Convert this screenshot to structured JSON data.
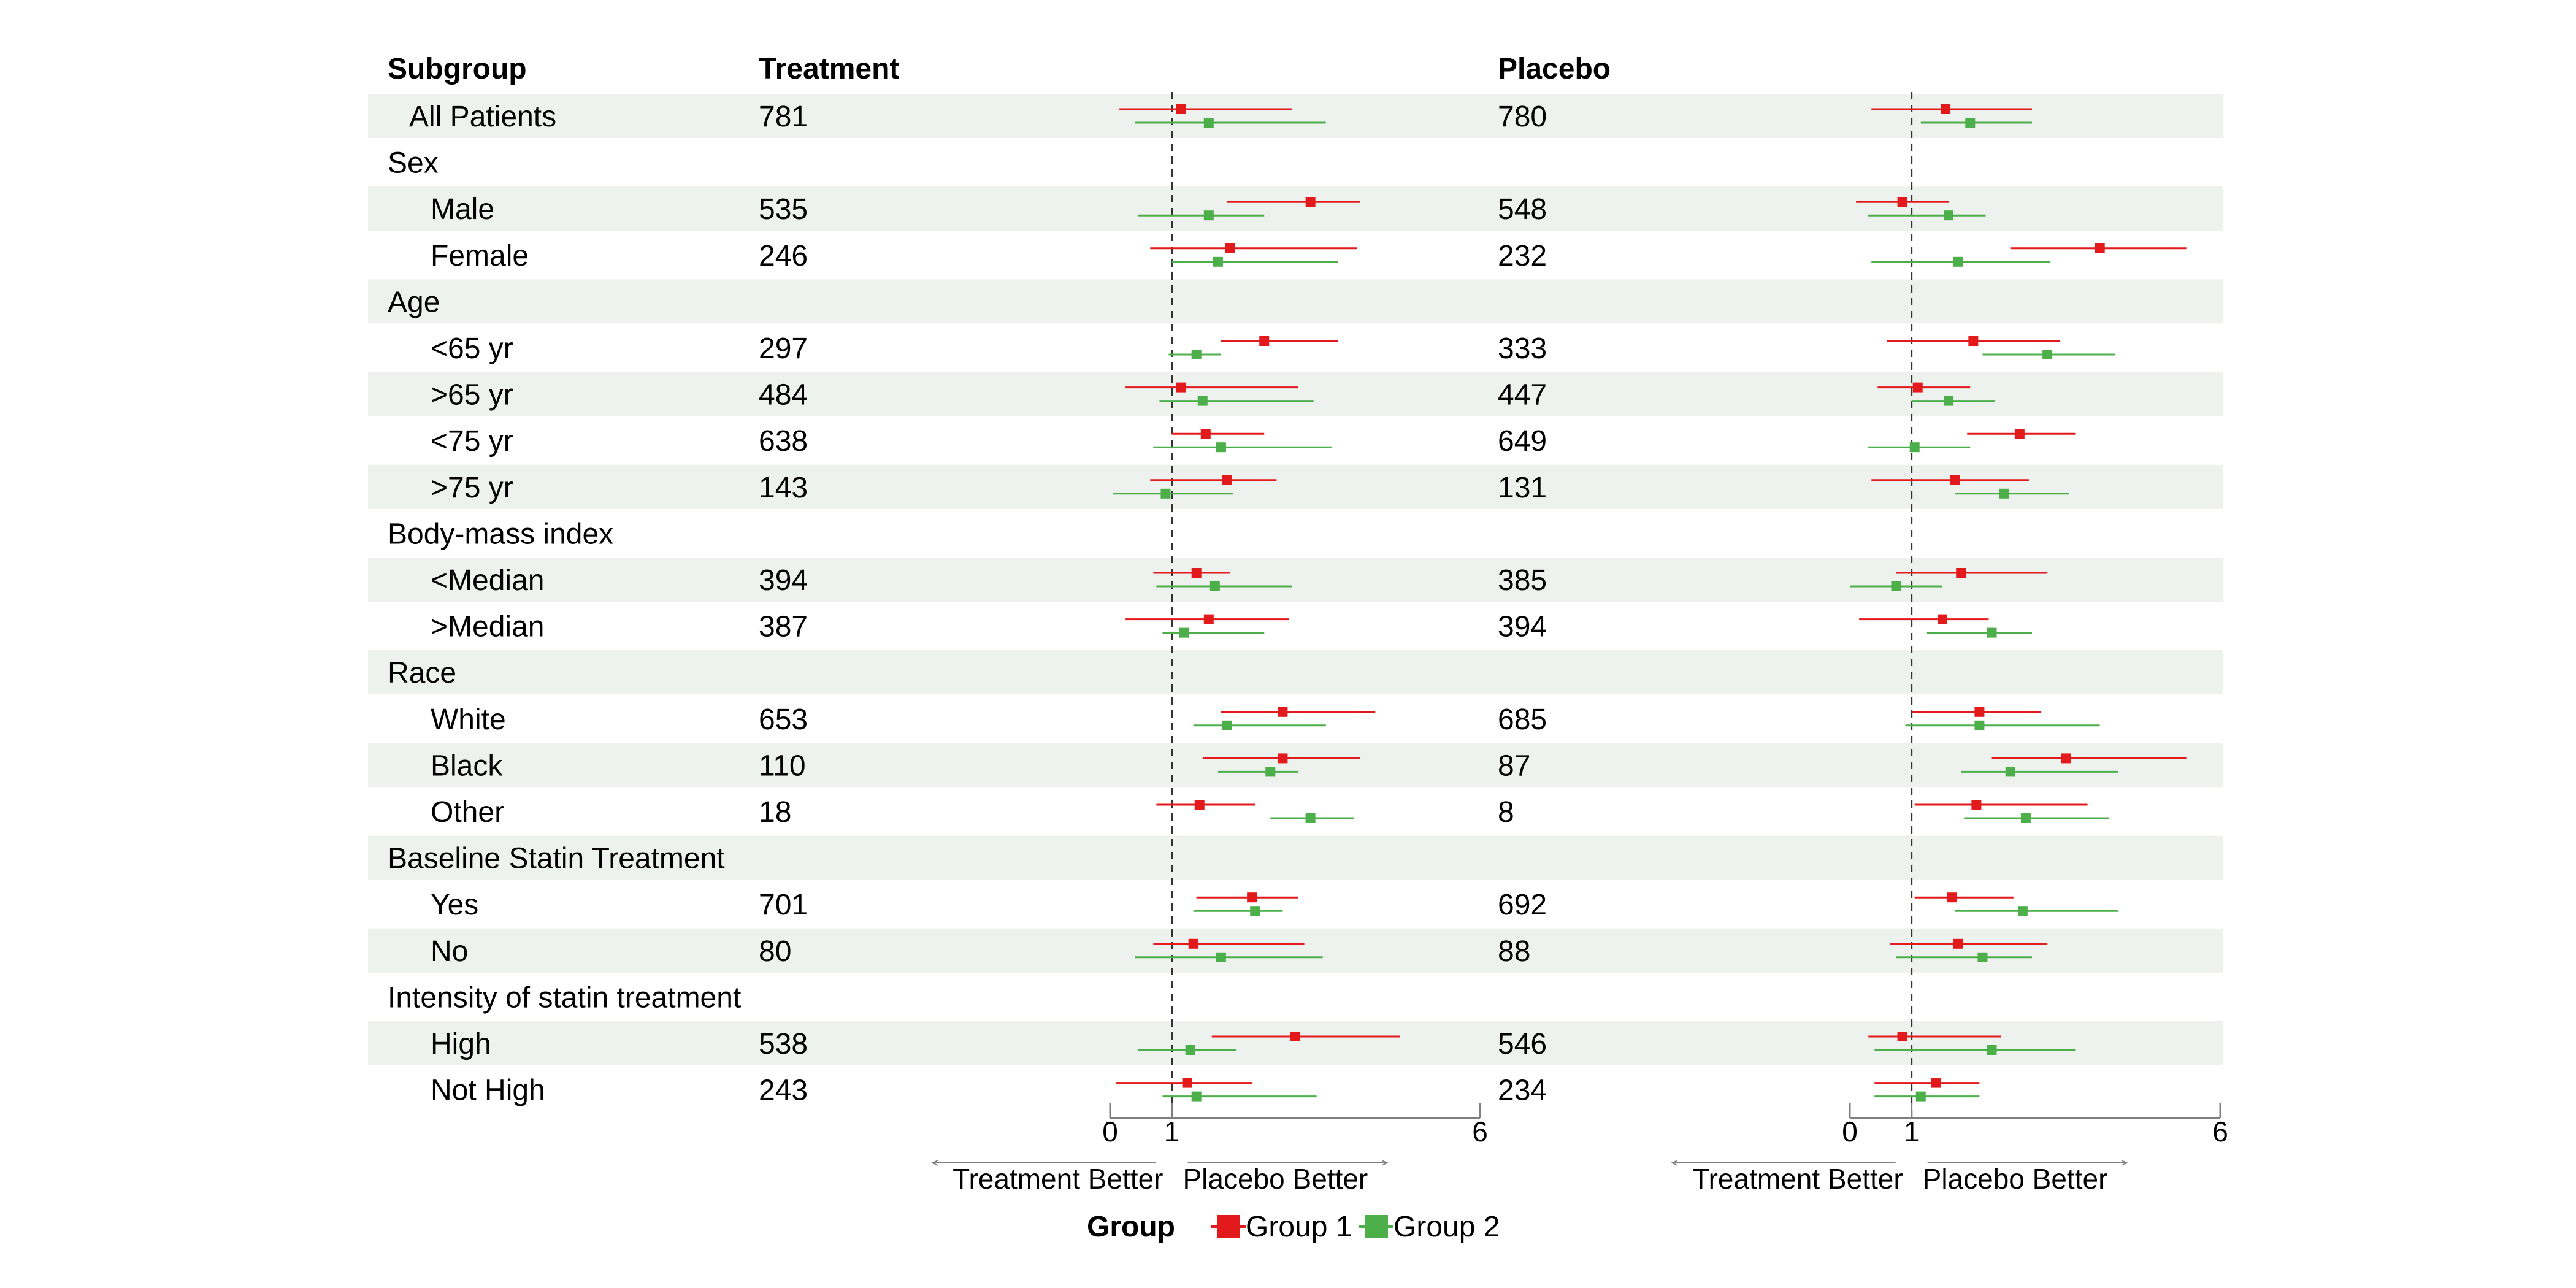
{
  "colors": {
    "group1": "#E31A1C",
    "group2": "#4DAF4A",
    "stripe": "#EEF2EF",
    "axis": "#7F7F7F",
    "refline": "#333333"
  },
  "headers": {
    "subgroup": "Subgroup",
    "treatment": "Treatment",
    "placebo": "Placebo"
  },
  "legend": {
    "title": "Group",
    "items": [
      "Group 1",
      "Group 2"
    ]
  },
  "chart_data": [
    {
      "type": "forest",
      "panel": "Treatment",
      "xlim": [
        0,
        6
      ],
      "ticks": [
        "0",
        "1",
        "6"
      ],
      "reference_line": 1,
      "direction_labels": [
        "Treatment Better",
        "Placebo Better"
      ],
      "series": [
        {
          "name": "Group 1",
          "color": "#E31A1C",
          "points": [
            {
              "row": "All Patients",
              "est": 1.15,
              "lo": 0.15,
              "hi": 2.95
            },
            {
              "row": "Male",
              "est": 3.25,
              "lo": 1.9,
              "hi": 4.05
            },
            {
              "row": "Female",
              "est": 1.95,
              "lo": 0.65,
              "hi": 4.0
            },
            {
              "row": "<65 yr",
              "est": 2.5,
              "lo": 1.8,
              "hi": 2.75,
              "hi2": 3.7
            },
            {
              "row": ">65 yr",
              "est": 1.15,
              "lo": 0.25,
              "hi": 3.05
            },
            {
              "row": "<75 yr",
              "est": 1.55,
              "lo": 1.0,
              "hi": 1.6,
              "hi2": 2.5
            },
            {
              "row": ">75 yr",
              "est": 1.9,
              "lo": 0.65,
              "hi": 2.7
            },
            {
              "row": "<Median",
              "est": 1.4,
              "lo": 0.7,
              "hi": 1.95
            },
            {
              "row": ">Median",
              "est": 1.6,
              "lo": 0.25,
              "hi": 2.9
            },
            {
              "row": "White",
              "est": 2.8,
              "lo": 1.8,
              "hi": 4.3
            },
            {
              "row": "Black",
              "est": 2.8,
              "lo": 1.5,
              "hi": 4.05
            },
            {
              "row": "Other",
              "est": 1.45,
              "lo": 0.75,
              "hi": 2.35
            },
            {
              "row": "Yes",
              "est": 2.3,
              "lo": 1.4,
              "hi": 3.05
            },
            {
              "row": "No",
              "est": 1.35,
              "lo": 0.7,
              "hi": 3.15
            },
            {
              "row": "High",
              "est": 3.0,
              "lo": 1.65,
              "hi": 4.7
            },
            {
              "row": "Not High",
              "est": 1.25,
              "lo": 0.1,
              "hi": 2.3
            }
          ]
        },
        {
          "name": "Group 2",
          "color": "#4DAF4A",
          "points": [
            {
              "row": "All Patients",
              "est": 1.6,
              "lo": 0.4,
              "hi": 3.5
            },
            {
              "row": "Male",
              "est": 1.6,
              "lo": 0.45,
              "hi": 2.5
            },
            {
              "row": "Female",
              "est": 1.75,
              "lo": 1.0,
              "hi": 3.7
            },
            {
              "row": "<65 yr",
              "est": 1.4,
              "lo": 0.95,
              "hi": 1.8
            },
            {
              "row": ">65 yr",
              "est": 1.5,
              "lo": 0.8,
              "hi": 3.3
            },
            {
              "row": "<75 yr",
              "est": 1.8,
              "lo": 0.7,
              "hi": 3.6
            },
            {
              "row": ">75 yr",
              "est": 0.9,
              "lo": 0.05,
              "hi": 2.0
            },
            {
              "row": "<Median",
              "est": 1.7,
              "lo": 0.75,
              "hi": 2.95
            },
            {
              "row": ">Median",
              "est": 1.2,
              "lo": 0.85,
              "hi": 2.5
            },
            {
              "row": "White",
              "est": 1.9,
              "lo": 1.35,
              "hi": 3.5
            },
            {
              "row": "Black",
              "est": 2.6,
              "lo": 1.75,
              "hi": 3.05
            },
            {
              "row": "Other",
              "est": 3.25,
              "lo": 2.6,
              "hi": 3.95
            },
            {
              "row": "Yes",
              "est": 2.35,
              "lo": 1.35,
              "hi": 2.8
            },
            {
              "row": "No",
              "est": 1.8,
              "lo": 0.4,
              "hi": 3.45
            },
            {
              "row": "High",
              "est": 1.3,
              "lo": 0.45,
              "hi": 2.05
            },
            {
              "row": "Not High",
              "est": 1.4,
              "lo": 0.85,
              "hi": 3.35
            }
          ]
        }
      ]
    },
    {
      "type": "forest",
      "panel": "Placebo",
      "xlim": [
        0,
        6
      ],
      "ticks": [
        "0",
        "1",
        "6"
      ],
      "reference_line": 1,
      "direction_labels": [
        "Treatment Better",
        "Placebo Better"
      ],
      "series": [
        {
          "name": "Group 1",
          "color": "#E31A1C",
          "points": [
            {
              "row": "All Patients",
              "est": 1.55,
              "lo": 0.35,
              "hi": 2.95
            },
            {
              "row": "Male",
              "est": 0.85,
              "lo": 0.1,
              "hi": 1.6
            },
            {
              "row": "Female",
              "est": 4.05,
              "lo": 2.6,
              "hi": 5.45
            },
            {
              "row": "<65 yr",
              "est": 2.0,
              "lo": 0.6,
              "hi": 3.4
            },
            {
              "row": ">65 yr",
              "est": 1.1,
              "lo": 0.45,
              "hi": 1.95
            },
            {
              "row": "<75 yr",
              "est": 2.75,
              "lo": 1.9,
              "hi": 3.65
            },
            {
              "row": ">75 yr",
              "est": 1.7,
              "lo": 0.35,
              "hi": 2.9
            },
            {
              "row": "<Median",
              "est": 1.8,
              "lo": 0.75,
              "hi": 3.2
            },
            {
              "row": ">Median",
              "est": 1.5,
              "lo": 0.15,
              "hi": 2.25
            },
            {
              "row": "White",
              "est": 2.1,
              "lo": 1.0,
              "hi": 2.5,
              "hi2": 3.1
            },
            {
              "row": "Black",
              "est": 3.5,
              "lo": 2.3,
              "hi": 5.45
            },
            {
              "row": "Other",
              "est": 2.05,
              "lo": 1.05,
              "hi": 2.9,
              "hi2": 3.85
            },
            {
              "row": "Yes",
              "est": 1.65,
              "lo": 1.05,
              "hi": 2.65
            },
            {
              "row": "No",
              "est": 1.75,
              "lo": 0.65,
              "hi": 3.2
            },
            {
              "row": "High",
              "est": 0.85,
              "lo": 0.3,
              "hi": 2.45
            },
            {
              "row": "Not High",
              "est": 1.4,
              "lo": 0.4,
              "hi": 2.1
            }
          ]
        },
        {
          "name": "Group 2",
          "color": "#4DAF4A",
          "points": [
            {
              "row": "All Patients",
              "est": 1.95,
              "lo": 1.15,
              "hi": 2.95
            },
            {
              "row": "Male",
              "est": 1.6,
              "lo": 0.3,
              "hi": 2.2
            },
            {
              "row": "Female",
              "est": 1.75,
              "lo": 0.35,
              "hi": 3.25
            },
            {
              "row": "<65 yr",
              "est": 3.2,
              "lo": 2.15,
              "hi": 4.3
            },
            {
              "row": ">65 yr",
              "est": 1.6,
              "lo": 1.0,
              "hi": 2.35
            },
            {
              "row": "<75 yr",
              "est": 1.05,
              "lo": 0.3,
              "hi": 1.95
            },
            {
              "row": ">75 yr",
              "est": 2.5,
              "lo": 1.7,
              "hi": 3.55
            },
            {
              "row": "<Median",
              "est": 0.75,
              "lo": 0.0,
              "hi": 1.5
            },
            {
              "row": ">Median",
              "est": 2.3,
              "lo": 1.25,
              "hi": 2.95
            },
            {
              "row": "White",
              "est": 2.1,
              "lo": 0.9,
              "hi": 4.05
            },
            {
              "row": "Black",
              "est": 2.6,
              "lo": 1.8,
              "hi": 4.35
            },
            {
              "row": "Other",
              "est": 2.85,
              "lo": 1.85,
              "hi": 4.2
            },
            {
              "row": "Yes",
              "est": 2.8,
              "lo": 1.7,
              "hi": 4.35
            },
            {
              "row": "No",
              "est": 2.15,
              "lo": 0.75,
              "hi": 2.95
            },
            {
              "row": "High",
              "est": 2.3,
              "lo": 0.4,
              "hi": 3.65
            },
            {
              "row": "Not High",
              "est": 1.15,
              "lo": 0.4,
              "hi": 2.1
            }
          ]
        }
      ]
    }
  ],
  "rows": [
    {
      "label": "All Patients",
      "indent": 1,
      "treatment": "781",
      "placebo": "780",
      "stripe": true,
      "plot": true
    },
    {
      "label": "Sex",
      "indent": 0,
      "treatment": "",
      "placebo": "",
      "stripe": false,
      "plot": false
    },
    {
      "label": "Male",
      "indent": 2,
      "treatment": "535",
      "placebo": "548",
      "stripe": true,
      "plot": true
    },
    {
      "label": "Female",
      "indent": 2,
      "treatment": "246",
      "placebo": "232",
      "stripe": false,
      "plot": true
    },
    {
      "label": "Age",
      "indent": 0,
      "treatment": "",
      "placebo": "",
      "stripe": true,
      "plot": false
    },
    {
      "label": "<65 yr",
      "indent": 2,
      "treatment": "297",
      "placebo": "333",
      "stripe": false,
      "plot": true
    },
    {
      "label": ">65 yr",
      "indent": 2,
      "treatment": "484",
      "placebo": "447",
      "stripe": true,
      "plot": true
    },
    {
      "label": "<75 yr",
      "indent": 2,
      "treatment": "638",
      "placebo": "649",
      "stripe": false,
      "plot": true
    },
    {
      "label": ">75 yr",
      "indent": 2,
      "treatment": "143",
      "placebo": "131",
      "stripe": true,
      "plot": true
    },
    {
      "label": "Body-mass index",
      "indent": 0,
      "treatment": "",
      "placebo": "",
      "stripe": false,
      "plot": false
    },
    {
      "label": "<Median",
      "indent": 2,
      "treatment": "394",
      "placebo": "385",
      "stripe": true,
      "plot": true
    },
    {
      "label": ">Median",
      "indent": 2,
      "treatment": "387",
      "placebo": "394",
      "stripe": false,
      "plot": true
    },
    {
      "label": "Race",
      "indent": 0,
      "treatment": "",
      "placebo": "",
      "stripe": true,
      "plot": false
    },
    {
      "label": "White",
      "indent": 2,
      "treatment": "653",
      "placebo": "685",
      "stripe": false,
      "plot": true
    },
    {
      "label": "Black",
      "indent": 2,
      "treatment": "110",
      "placebo": "87",
      "stripe": true,
      "plot": true
    },
    {
      "label": "Other",
      "indent": 2,
      "treatment": "18",
      "placebo": "8",
      "stripe": false,
      "plot": true
    },
    {
      "label": "Baseline Statin Treatment",
      "indent": 0,
      "treatment": "",
      "placebo": "",
      "stripe": true,
      "plot": false
    },
    {
      "label": "Yes",
      "indent": 2,
      "treatment": "701",
      "placebo": "692",
      "stripe": false,
      "plot": true
    },
    {
      "label": "No",
      "indent": 2,
      "treatment": "80",
      "placebo": "88",
      "stripe": true,
      "plot": true
    },
    {
      "label": "Intensity of statin treatment",
      "indent": 0,
      "treatment": "",
      "placebo": "",
      "stripe": false,
      "plot": false
    },
    {
      "label": "High",
      "indent": 2,
      "treatment": "538",
      "placebo": "546",
      "stripe": true,
      "plot": true
    },
    {
      "label": "Not High",
      "indent": 2,
      "treatment": "243",
      "placebo": "234",
      "stripe": false,
      "plot": true
    }
  ]
}
